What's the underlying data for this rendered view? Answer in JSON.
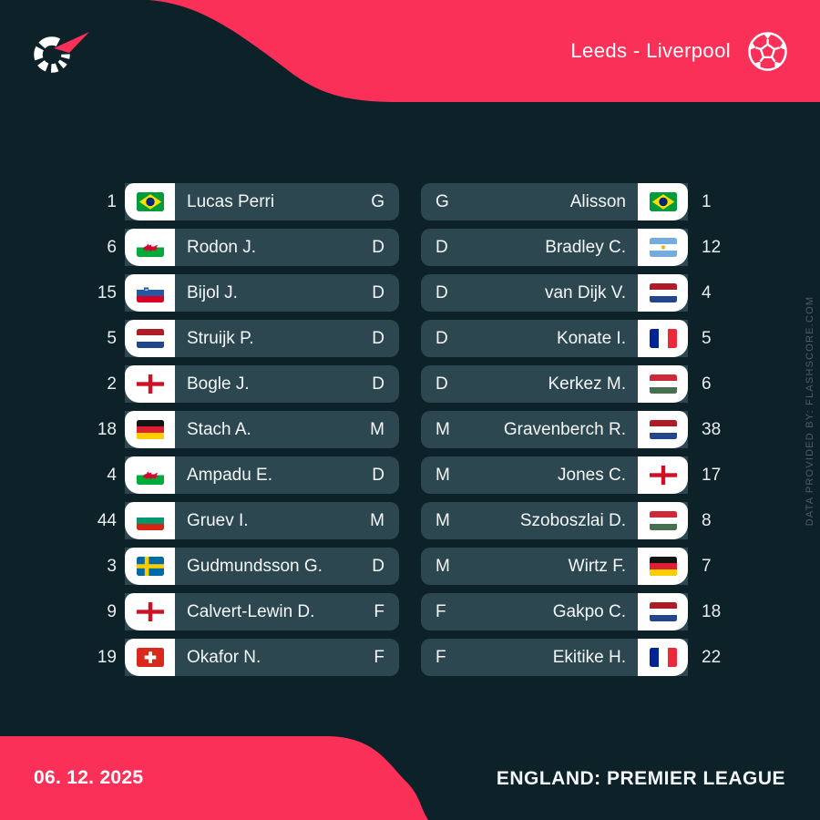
{
  "header": {
    "match_title": "Leeds - Liverpool",
    "logo_icon": "flashscore-logo",
    "ball_icon": "football-icon"
  },
  "teams": {
    "home": "Leeds",
    "away": "Liverpool"
  },
  "home_players": [
    {
      "number": "1",
      "flag": "brazil",
      "name": "Lucas Perri",
      "position": "G"
    },
    {
      "number": "6",
      "flag": "wales",
      "name": "Rodon J.",
      "position": "D"
    },
    {
      "number": "15",
      "flag": "slovenia",
      "name": "Bijol J.",
      "position": "D"
    },
    {
      "number": "5",
      "flag": "netherlands",
      "name": "Struijk P.",
      "position": "D"
    },
    {
      "number": "2",
      "flag": "england",
      "name": "Bogle J.",
      "position": "D"
    },
    {
      "number": "18",
      "flag": "germany",
      "name": "Stach A.",
      "position": "M"
    },
    {
      "number": "4",
      "flag": "wales",
      "name": "Ampadu E.",
      "position": "D"
    },
    {
      "number": "44",
      "flag": "bulgaria",
      "name": "Gruev I.",
      "position": "M"
    },
    {
      "number": "3",
      "flag": "sweden",
      "name": "Gudmundsson G.",
      "position": "D"
    },
    {
      "number": "9",
      "flag": "england",
      "name": "Calvert-Lewin D.",
      "position": "F"
    },
    {
      "number": "19",
      "flag": "switzerland",
      "name": "Okafor N.",
      "position": "F"
    }
  ],
  "away_players": [
    {
      "number": "1",
      "flag": "brazil",
      "name": "Alisson",
      "position": "G"
    },
    {
      "number": "12",
      "flag": "argentina",
      "name": "Bradley C.",
      "position": "D"
    },
    {
      "number": "4",
      "flag": "netherlands",
      "name": "van Dijk V.",
      "position": "D"
    },
    {
      "number": "5",
      "flag": "france",
      "name": "Konate I.",
      "position": "D"
    },
    {
      "number": "6",
      "flag": "hungary",
      "name": "Kerkez M.",
      "position": "D"
    },
    {
      "number": "38",
      "flag": "netherlands",
      "name": "Gravenberch R.",
      "position": "M"
    },
    {
      "number": "17",
      "flag": "england",
      "name": "Jones C.",
      "position": "M"
    },
    {
      "number": "8",
      "flag": "hungary",
      "name": "Szoboszlai D.",
      "position": "M"
    },
    {
      "number": "7",
      "flag": "germany",
      "name": "Wirtz F.",
      "position": "M"
    },
    {
      "number": "18",
      "flag": "netherlands",
      "name": "Gakpo C.",
      "position": "F"
    },
    {
      "number": "22",
      "flag": "france",
      "name": "Ekitike H.",
      "position": "F"
    }
  ],
  "footer": {
    "date": "06. 12. 2025",
    "league": "ENGLAND: PREMIER LEAGUE"
  },
  "watermark": {
    "text": "DATA PROVIDED BY: FLASHSCORE.COM"
  },
  "colors": {
    "background": "#0d2128",
    "row": "#2c474f",
    "accent": "#fa3059",
    "text": "#f4f7f8",
    "muted": "#4c5e66",
    "flag_box": "#ffffff"
  }
}
